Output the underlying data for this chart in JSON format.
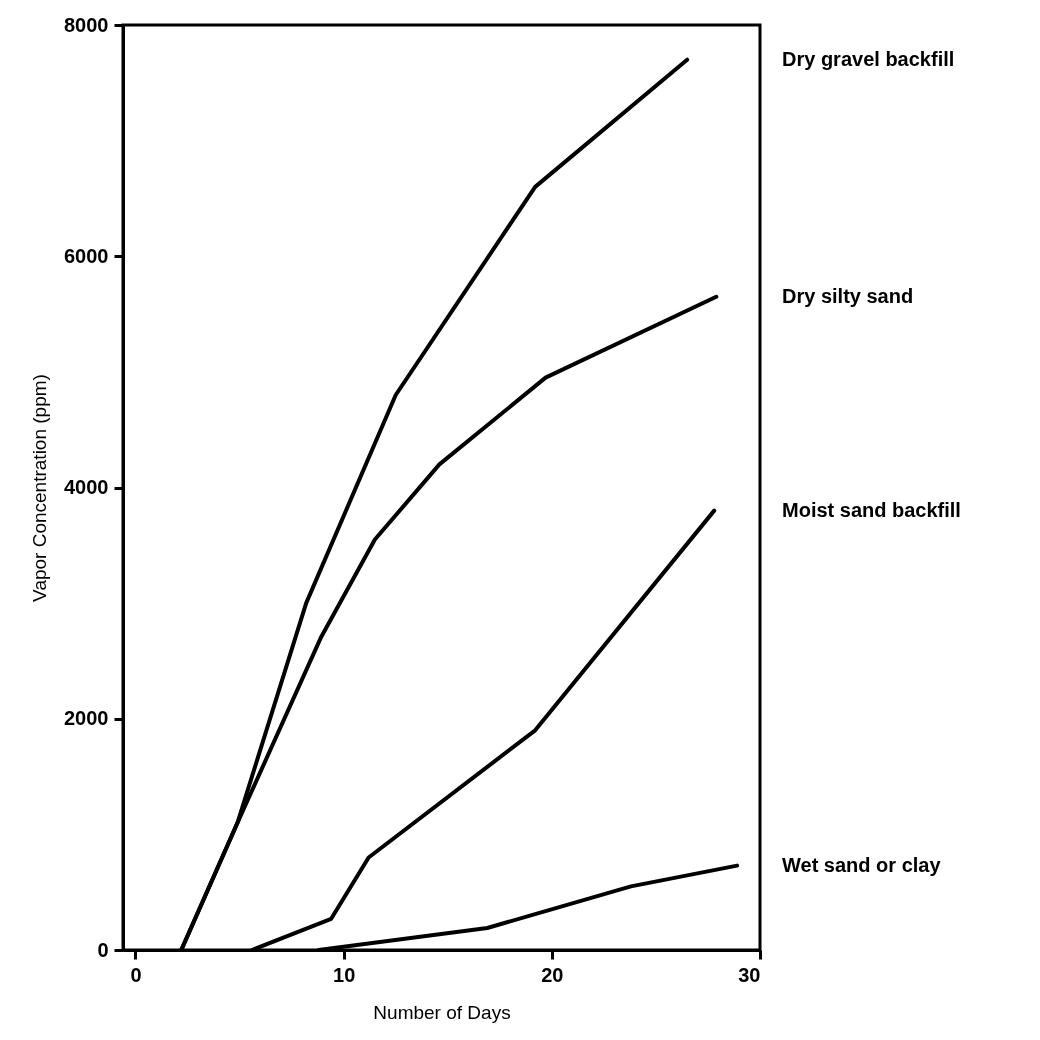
{
  "chart_data": {
    "type": "line",
    "xlabel": "Number of Days",
    "ylabel": "Vapor Concentration (ppm)",
    "xlim": [
      -0.6,
      30
    ],
    "ylim": [
      0,
      8000
    ],
    "xticks": [
      0,
      10,
      20,
      30
    ],
    "yticks": [
      0,
      2000,
      4000,
      6000,
      8000
    ],
    "grid": false,
    "marker": "none",
    "line_style": "solid",
    "series": [
      {
        "name": "Dry gravel backfill",
        "color": "#000000",
        "x": [
          2.2,
          4.9,
          8.2,
          12.5,
          19.2,
          26.5
        ],
        "values": [
          0,
          1100,
          3000,
          4800,
          6600,
          7700
        ]
      },
      {
        "name": "Dry silty sand",
        "color": "#000000",
        "x": [
          2.2,
          4.9,
          8.9,
          11.5,
          14.6,
          19.7,
          27.9
        ],
        "values": [
          0,
          1100,
          2700,
          3550,
          4200,
          4950,
          5650
        ]
      },
      {
        "name": "Moist sand backfill",
        "color": "#000000",
        "x": [
          5.6,
          9.4,
          11.2,
          19.2,
          27.8
        ],
        "values": [
          0,
          270,
          800,
          1900,
          3800
        ]
      },
      {
        "name": "Wet sand or clay",
        "color": "#000000",
        "x": [
          8.8,
          16.9,
          23.8,
          28.9
        ],
        "values": [
          0,
          190,
          550,
          730
        ]
      }
    ]
  }
}
